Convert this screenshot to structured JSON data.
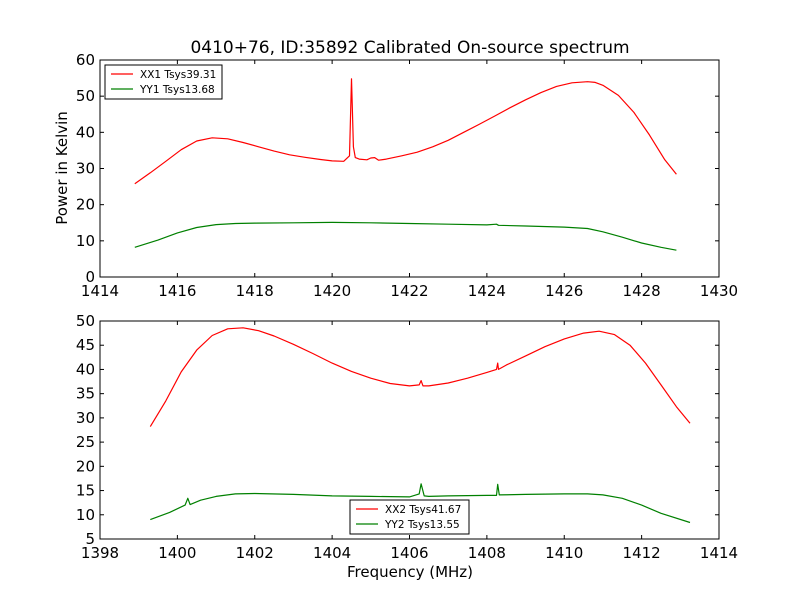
{
  "chart_data": [
    {
      "type": "line",
      "title": "0410+76, ID:35892 Calibrated On-source spectrum",
      "xlabel": "",
      "ylabel": "Power in Kelvin",
      "xlim": [
        1414,
        1430
      ],
      "ylim": [
        0,
        60
      ],
      "xticks": [
        "1414",
        "1416",
        "1418",
        "1420",
        "1422",
        "1424",
        "1426",
        "1428",
        "1430"
      ],
      "yticks": [
        "0",
        "10",
        "20",
        "30",
        "40",
        "50",
        "60"
      ],
      "grid": false,
      "legend_position": "top-left",
      "series": [
        {
          "name": "XX1 Tsys39.31",
          "color": "#ff0000",
          "x": [
            1414.9,
            1415.3,
            1415.7,
            1416.1,
            1416.5,
            1416.9,
            1417.3,
            1417.7,
            1418.1,
            1418.5,
            1418.9,
            1419.3,
            1419.7,
            1420.0,
            1420.3,
            1420.45,
            1420.5,
            1420.52,
            1420.55,
            1420.6,
            1420.7,
            1420.9,
            1421.0,
            1421.1,
            1421.2,
            1421.4,
            1421.8,
            1422.2,
            1422.6,
            1423.0,
            1423.4,
            1423.8,
            1424.2,
            1424.6,
            1425.0,
            1425.4,
            1425.8,
            1426.2,
            1426.6,
            1426.8,
            1427.0,
            1427.4,
            1427.8,
            1428.2,
            1428.6,
            1428.9
          ],
          "values": [
            25.8,
            28.8,
            32.0,
            35.2,
            37.6,
            38.5,
            38.2,
            37.2,
            36.0,
            34.8,
            33.8,
            33.1,
            32.5,
            32.1,
            32.0,
            33.5,
            54.8,
            48.0,
            36.0,
            33.0,
            32.6,
            32.4,
            32.9,
            33.0,
            32.3,
            32.6,
            33.5,
            34.5,
            36.0,
            37.8,
            40.0,
            42.2,
            44.5,
            46.8,
            49.0,
            51.0,
            52.7,
            53.7,
            54.0,
            53.8,
            53.0,
            50.2,
            45.5,
            39.3,
            32.4,
            28.4
          ]
        },
        {
          "name": "YY1 Tsys13.68",
          "color": "#008000",
          "x": [
            1414.9,
            1415.5,
            1416.0,
            1416.5,
            1417.0,
            1417.5,
            1418.0,
            1419.0,
            1420.0,
            1421.0,
            1422.0,
            1423.0,
            1424.0,
            1424.25,
            1424.3,
            1425.0,
            1426.0,
            1426.6,
            1427.0,
            1427.5,
            1428.0,
            1428.5,
            1428.9
          ],
          "values": [
            8.2,
            10.2,
            12.2,
            13.7,
            14.5,
            14.8,
            14.9,
            15.0,
            15.1,
            15.0,
            14.8,
            14.6,
            14.4,
            14.6,
            14.3,
            14.1,
            13.8,
            13.4,
            12.5,
            11.0,
            9.4,
            8.2,
            7.4
          ]
        }
      ]
    },
    {
      "type": "line",
      "title": "",
      "xlabel": "Frequency (MHz)",
      "ylabel": "",
      "xlim": [
        1398,
        1414
      ],
      "ylim": [
        5,
        50
      ],
      "xticks": [
        "1398",
        "1400",
        "1402",
        "1404",
        "1406",
        "1408",
        "1410",
        "1412",
        "1414"
      ],
      "yticks": [
        "5",
        "10",
        "15",
        "20",
        "25",
        "30",
        "35",
        "40",
        "45",
        "50"
      ],
      "grid": false,
      "legend_position": "bottom-center",
      "series": [
        {
          "name": "XX2 Tsys41.67",
          "color": "#ff0000",
          "x": [
            1399.3,
            1399.7,
            1400.1,
            1400.5,
            1400.9,
            1401.3,
            1401.7,
            1402.1,
            1402.5,
            1403.0,
            1403.5,
            1404.0,
            1404.5,
            1405.0,
            1405.5,
            1406.0,
            1406.25,
            1406.3,
            1406.35,
            1406.5,
            1407.0,
            1407.5,
            1408.0,
            1408.25,
            1408.28,
            1408.3,
            1408.5,
            1409.0,
            1409.5,
            1410.0,
            1410.5,
            1410.9,
            1411.3,
            1411.7,
            1412.1,
            1412.5,
            1412.9,
            1413.25
          ],
          "values": [
            28.2,
            33.5,
            39.5,
            44.0,
            47.0,
            48.4,
            48.6,
            48.0,
            46.9,
            45.2,
            43.3,
            41.3,
            39.6,
            38.2,
            37.1,
            36.6,
            36.8,
            37.7,
            36.6,
            36.6,
            37.2,
            38.2,
            39.4,
            40.0,
            41.3,
            40.0,
            40.9,
            42.8,
            44.7,
            46.3,
            47.5,
            47.9,
            47.2,
            45.0,
            41.3,
            36.8,
            32.3,
            28.9
          ]
        },
        {
          "name": "YY2 Tsys13.55",
          "color": "#008000",
          "x": [
            1399.3,
            1399.8,
            1400.2,
            1400.27,
            1400.33,
            1400.6,
            1401.0,
            1401.5,
            1402.0,
            1403.0,
            1404.0,
            1405.0,
            1406.0,
            1406.25,
            1406.3,
            1406.38,
            1406.5,
            1407.0,
            1408.0,
            1408.25,
            1408.28,
            1408.32,
            1409.0,
            1410.0,
            1410.6,
            1411.0,
            1411.5,
            1412.0,
            1412.5,
            1413.25
          ],
          "values": [
            9.0,
            10.5,
            12.0,
            13.4,
            12.1,
            13.0,
            13.8,
            14.3,
            14.4,
            14.2,
            13.9,
            13.8,
            13.7,
            14.3,
            16.4,
            13.9,
            13.8,
            13.9,
            14.0,
            14.0,
            16.3,
            14.1,
            14.2,
            14.3,
            14.3,
            14.1,
            13.4,
            12.0,
            10.3,
            8.4
          ]
        }
      ]
    }
  ]
}
